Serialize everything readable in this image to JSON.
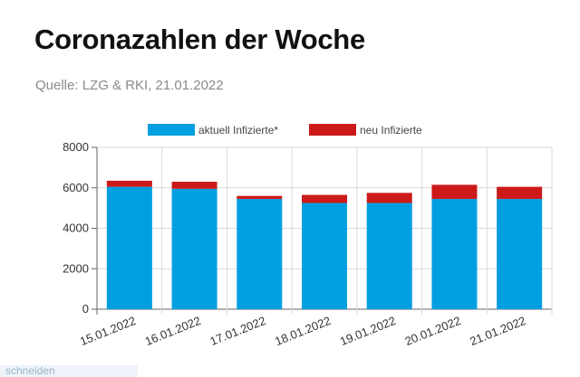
{
  "page": {
    "title": "Coronazahlen der Woche",
    "source": "Quelle: LZG & RKI, 21.01.2022",
    "footer_fragment": "schneiden"
  },
  "chart_data": {
    "type": "bar",
    "stacked": true,
    "categories": [
      "15.01.2022",
      "16.01.2022",
      "17.01.2022",
      "18.01.2022",
      "19.01.2022",
      "20.01.2022",
      "21.01.2022"
    ],
    "series": [
      {
        "name": "aktuell Infizierte*",
        "color": "#009fe0",
        "values": [
          6050,
          5950,
          5450,
          5250,
          5250,
          5450,
          5450
        ]
      },
      {
        "name": "neu Infizierte",
        "color": "#cc1a1a",
        "values": [
          300,
          350,
          150,
          400,
          500,
          700,
          600
        ]
      }
    ],
    "yticks": [
      0,
      2000,
      4000,
      6000,
      8000
    ],
    "ylim": [
      0,
      8000
    ],
    "grid": true,
    "legend_position": "top-center"
  }
}
